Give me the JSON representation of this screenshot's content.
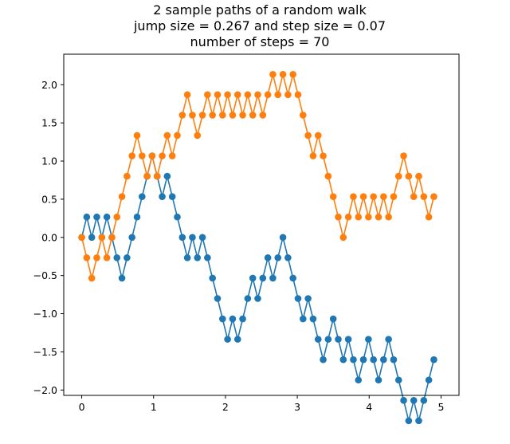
{
  "chart_data": {
    "type": "line",
    "title_lines": [
      "2 sample paths of a random walk",
      "jump size = 0.267 and step size = 0.07",
      "number of steps = 70"
    ],
    "xlabel": "",
    "ylabel": "",
    "xlim": [
      -0.25,
      5.25
    ],
    "ylim": [
      -2.07,
      2.4
    ],
    "xticks": [
      0,
      1,
      2,
      3,
      4,
      5
    ],
    "xtick_labels": [
      "0",
      "1",
      "2",
      "3",
      "4",
      "5"
    ],
    "yticks": [
      -2.0,
      -1.5,
      -1.0,
      -0.5,
      0.0,
      0.5,
      1.0,
      1.5,
      2.0
    ],
    "ytick_labels": [
      "−2.0",
      "−1.5",
      "−1.0",
      "−0.5",
      "0.0",
      "0.5",
      "1.0",
      "1.5",
      "2.0"
    ],
    "grid": false,
    "legend": false,
    "x_start": 0,
    "x_step": 0.07,
    "series": [
      {
        "color": "#1f77b4",
        "marker": "circle",
        "steps": [
          1,
          -1,
          1,
          -1,
          1,
          -1,
          -1,
          -1,
          1,
          1,
          1,
          1,
          1,
          1,
          -1,
          -1,
          1,
          -1,
          -1,
          -1,
          -1,
          1,
          -1,
          1,
          -1,
          -1,
          -1,
          -1,
          -1,
          1,
          -1,
          1,
          1,
          1,
          -1,
          1,
          1,
          -1,
          1,
          1,
          -1,
          -1,
          -1,
          -1,
          1,
          -1,
          -1,
          -1,
          1,
          1,
          -1,
          -1,
          1,
          -1,
          -1,
          1,
          1,
          -1,
          -1,
          1,
          1,
          -1,
          -1,
          -1,
          -1,
          1,
          -1,
          1,
          1,
          1
        ]
      },
      {
        "color": "#ff7f0e",
        "marker": "circle",
        "steps": [
          -1,
          -1,
          1,
          1,
          -1,
          1,
          1,
          1,
          1,
          1,
          1,
          -1,
          -1,
          1,
          -1,
          1,
          1,
          -1,
          1,
          1,
          1,
          -1,
          -1,
          1,
          1,
          -1,
          1,
          -1,
          1,
          -1,
          1,
          -1,
          1,
          -1,
          1,
          -1,
          1,
          1,
          -1,
          1,
          -1,
          1,
          -1,
          -1,
          -1,
          -1,
          1,
          -1,
          -1,
          -1,
          -1,
          -1,
          1,
          1,
          -1,
          1,
          -1,
          1,
          -1,
          1,
          -1,
          1,
          1,
          1,
          -1,
          -1,
          1,
          -1,
          -1,
          1
        ]
      }
    ]
  }
}
